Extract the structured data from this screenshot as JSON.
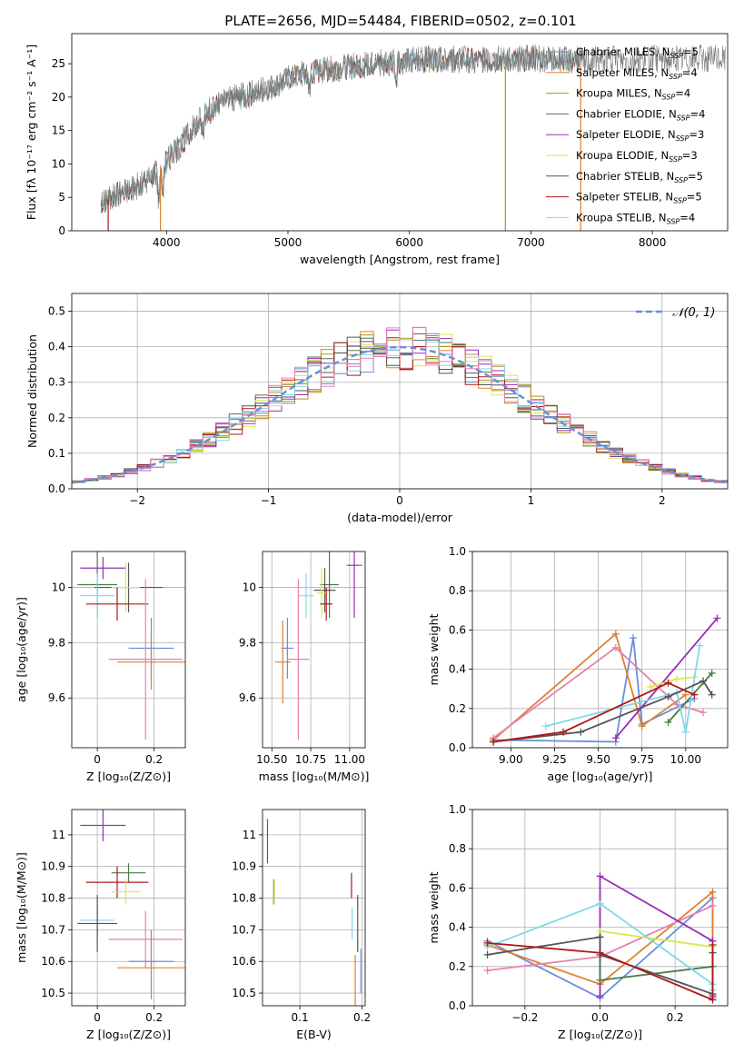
{
  "figure": {
    "title": "PLATE=2656, MJD=54484, FIBERID=0502, z=0.101"
  },
  "colors": {
    "Chabrier MILES": "#6a8fd8",
    "Salpeter MILES": "#e08030",
    "Kroupa MILES": "#b8901a",
    "Chabrier ELODIE": "#4a7a4a",
    "Salpeter ELODIE": "#9a2ab8",
    "Kroupa ELODIE": "#d8e850",
    "Chabrier STELIB": "#555555",
    "Salpeter STELIB": "#b01818",
    "Kroupa STELIB": "#80d8e8",
    "pink": "#e880b0"
  },
  "chart_data": [
    {
      "type": "line",
      "id": "spectrum",
      "title": "PLATE=2656, MJD=54484, FIBERID=0502, z=0.101",
      "xlabel": "wavelength [Angstrom, rest frame]",
      "ylabel": "Flux [fλ 10⁻¹⁷ erg cm⁻² s⁻¹ A⁻¹]",
      "xlim": [
        3220,
        8620
      ],
      "ylim": [
        0,
        29.5
      ],
      "xticks": [
        4000,
        5000,
        6000,
        7000,
        8000
      ],
      "yticks": [
        0,
        5,
        10,
        15,
        20,
        25
      ],
      "grid": false,
      "legend_placement": "top-right",
      "continuum_x": [
        3450,
        3600,
        3800,
        3950,
        4100,
        4300,
        4500,
        4800,
        5100,
        5400,
        5800,
        6200,
        6600,
        7000,
        7400,
        8000,
        8600
      ],
      "continuum_y": [
        4.0,
        5.5,
        7.0,
        9.5,
        12.5,
        17.5,
        19.5,
        21.0,
        23.5,
        24.3,
        25.2,
        25.7,
        25.5,
        25.8,
        25.5,
        25.7,
        25.8
      ],
      "features": [
        {
          "x": 3935,
          "depth": 4.5
        },
        {
          "x": 3970,
          "depth": 4.0
        },
        {
          "x": 4300,
          "depth": 3.0
        },
        {
          "x": 5175,
          "depth": 3.0
        },
        {
          "x": 5890,
          "depth": 2.5
        }
      ],
      "series": [
        {
          "name": "Chabrier MILES",
          "legend": "Chabrier MILES, N",
          "nssp": "=5"
        },
        {
          "name": "Salpeter MILES",
          "legend": "Salpeter MILES, N",
          "nssp": "=4"
        },
        {
          "name": "Kroupa MILES",
          "legend": "Kroupa MILES, N",
          "nssp": "=4"
        },
        {
          "name": "Chabrier ELODIE",
          "legend": "Chabrier ELODIE, N",
          "nssp": "=4"
        },
        {
          "name": "Salpeter ELODIE",
          "legend": "Salpeter ELODIE, N",
          "nssp": "=3"
        },
        {
          "name": "Kroupa ELODIE",
          "legend": "Kroupa ELODIE, N",
          "nssp": "=3"
        },
        {
          "name": "Chabrier STELIB",
          "legend": "Chabrier STELIB, N",
          "nssp": "=5"
        },
        {
          "name": "Salpeter STELIB",
          "legend": "Salpeter STELIB, N",
          "nssp": "=5"
        },
        {
          "name": "Kroupa STELIB",
          "legend": "Kroupa STELIB, N",
          "nssp": "=4"
        }
      ],
      "nssp_subscript": "SSP"
    },
    {
      "type": "bar",
      "id": "residuals",
      "xlabel": "(data-model)/error",
      "ylabel": "Normed distribution",
      "xlim": [
        -2.5,
        2.5
      ],
      "ylim": [
        0,
        0.55
      ],
      "xticks": [
        -2,
        -1,
        0,
        1,
        2
      ],
      "xticklabels": [
        "−2",
        "−1",
        "0",
        "1",
        "2"
      ],
      "yticks": [
        0.0,
        0.1,
        0.2,
        0.3,
        0.4,
        0.5
      ],
      "yticklabels": [
        "0.0",
        "0.1",
        "0.2",
        "0.3",
        "0.4",
        "0.5"
      ],
      "grid": true,
      "bin_width": 0.1,
      "legend_placement": "top-right",
      "gaussian_label": "𝒩(0, 1)",
      "gaussian_mean": 0,
      "gaussian_sigma": 1
    },
    {
      "type": "scatter",
      "id": "age-vs-Z",
      "xlabel": "Z [log₁₀(Z/Z⊙)]",
      "ylabel": "age  [log₁₀(age/yr)]",
      "xlim": [
        -0.09,
        0.31
      ],
      "ylim": [
        9.42,
        10.13
      ],
      "xticks": [
        0.0,
        0.2
      ],
      "yticks": [
        9.6,
        9.8,
        10.0
      ],
      "grid": true,
      "points": [
        {
          "x": 0.02,
          "y": 10.07,
          "xerr": 0.08,
          "yerr": 0.04,
          "color": "Salpeter ELODIE"
        },
        {
          "x": 0.0,
          "y": 10.01,
          "xerr": 0.07,
          "yerr": 0.12,
          "color": "Chabrier ELODIE"
        },
        {
          "x": 0.11,
          "y": 10.0,
          "xerr": 0.12,
          "yerr": 0.09,
          "color": "Chabrier STELIB"
        },
        {
          "x": 0.1,
          "y": 10.0,
          "xerr": 0.05,
          "yerr": 0.09,
          "color": "Kroupa ELODIE"
        },
        {
          "x": 0.0,
          "y": 9.97,
          "xerr": 0.06,
          "yerr": 0.08,
          "color": "Kroupa STELIB"
        },
        {
          "x": 0.07,
          "y": 9.94,
          "xerr": 0.11,
          "yerr": 0.06,
          "color": "Salpeter STELIB"
        },
        {
          "x": 0.19,
          "y": 9.78,
          "xerr": 0.08,
          "yerr": 0.11,
          "color": "Chabrier MILES"
        },
        {
          "x": 0.19,
          "y": 9.73,
          "xerr": 0.12,
          "yerr": 0.1,
          "color": "Salpeter MILES"
        },
        {
          "x": 0.17,
          "y": 9.74,
          "xerr": 0.13,
          "yerr": 0.29,
          "color": "pink"
        }
      ]
    },
    {
      "type": "scatter",
      "id": "age-vs-mass",
      "xlabel": "mass [log₁₀(M/M⊙)]",
      "ylabel": "",
      "xlim": [
        10.44,
        11.1
      ],
      "ylim": [
        9.42,
        10.13
      ],
      "xticks": [
        10.5,
        10.75,
        11.0
      ],
      "xticklabels": [
        "10.50",
        "10.75",
        "11.00"
      ],
      "yticks": [
        9.6,
        9.8,
        10.0
      ],
      "grid": true,
      "points": [
        {
          "x": 11.03,
          "y": 10.08,
          "xerr": 0.05,
          "yerr": 0.19,
          "color": "Salpeter ELODIE"
        },
        {
          "x": 10.87,
          "y": 10.01,
          "xerr": 0.06,
          "yerr": 0.12,
          "color": "Chabrier ELODIE"
        },
        {
          "x": 10.84,
          "y": 9.99,
          "xerr": 0.07,
          "yerr": 0.08,
          "color": "Chabrier STELIB"
        },
        {
          "x": 10.82,
          "y": 9.98,
          "xerr": 0.03,
          "yerr": 0.09,
          "color": "Kroupa ELODIE"
        },
        {
          "x": 10.72,
          "y": 9.97,
          "xerr": 0.05,
          "yerr": 0.08,
          "color": "Kroupa STELIB"
        },
        {
          "x": 10.85,
          "y": 9.94,
          "xerr": 0.04,
          "yerr": 0.06,
          "color": "Salpeter STELIB"
        },
        {
          "x": 10.6,
          "y": 9.78,
          "xerr": 0.04,
          "yerr": 0.11,
          "color": "Chabrier MILES"
        },
        {
          "x": 10.57,
          "y": 9.73,
          "xerr": 0.05,
          "yerr": 0.15,
          "color": "Salpeter MILES"
        },
        {
          "x": 10.67,
          "y": 9.74,
          "xerr": 0.07,
          "yerr": 0.29,
          "color": "pink"
        }
      ]
    },
    {
      "type": "line",
      "id": "weight-vs-age",
      "xlabel": "age  [log₁₀(age/yr)]",
      "ylabel": "mass weight",
      "xlim": [
        8.78,
        10.24
      ],
      "ylim": [
        0.0,
        1.0
      ],
      "xticks": [
        9.0,
        9.25,
        9.5,
        9.75,
        10.0
      ],
      "xticklabels": [
        "9.00",
        "9.25",
        "9.50",
        "9.75",
        "10.00"
      ],
      "yticks": [
        0.0,
        0.2,
        0.4,
        0.6,
        0.8,
        1.0
      ],
      "yticklabels": [
        "0.0",
        "0.2",
        "0.4",
        "0.6",
        "0.8",
        "1.0"
      ],
      "grid": true,
      "series": [
        {
          "color": "Chabrier MILES",
          "x": [
            8.9,
            9.6,
            9.7,
            9.75,
            10.05
          ],
          "y": [
            0.04,
            0.03,
            0.56,
            0.12,
            0.25
          ]
        },
        {
          "color": "Salpeter MILES",
          "x": [
            8.9,
            9.6,
            9.75,
            10.0
          ],
          "y": [
            0.04,
            0.58,
            0.11,
            0.27
          ]
        },
        {
          "color": "pink",
          "x": [
            8.9,
            9.6,
            9.95,
            10.1
          ],
          "y": [
            0.05,
            0.51,
            0.22,
            0.18
          ]
        },
        {
          "color": "Salpeter ELODIE",
          "x": [
            9.6,
            10.18
          ],
          "y": [
            0.05,
            0.66
          ]
        },
        {
          "color": "Chabrier ELODIE",
          "x": [
            9.9,
            10.15
          ],
          "y": [
            0.13,
            0.38
          ]
        },
        {
          "color": "Kroupa ELODIE",
          "x": [
            9.8,
            9.95,
            10.05
          ],
          "y": [
            0.31,
            0.35,
            0.36
          ]
        },
        {
          "color": "Kroupa STELIB",
          "x": [
            9.2,
            9.95,
            10.0,
            10.08
          ],
          "y": [
            0.11,
            0.28,
            0.08,
            0.52
          ]
        },
        {
          "color": "Chabrier STELIB",
          "x": [
            8.9,
            9.4,
            9.9,
            10.1,
            10.15
          ],
          "y": [
            0.03,
            0.08,
            0.26,
            0.34,
            0.27
          ]
        },
        {
          "color": "Salpeter STELIB",
          "x": [
            8.9,
            9.3,
            9.9,
            10.05
          ],
          "y": [
            0.03,
            0.08,
            0.33,
            0.27
          ]
        }
      ]
    },
    {
      "type": "scatter",
      "id": "mass-vs-Z",
      "xlabel": "Z [log₁₀(Z/Z⊙)]",
      "ylabel": "mass [log₁₀(M/M⊙)]",
      "xlim": [
        -0.09,
        0.31
      ],
      "ylim": [
        10.46,
        11.08
      ],
      "xticks": [
        0.0,
        0.2
      ],
      "yticks": [
        10.5,
        10.6,
        10.7,
        10.8,
        10.9,
        11.0
      ],
      "grid": true,
      "points": [
        {
          "x": 0.02,
          "y": 11.03,
          "xerr": 0.08,
          "yerr": 0.05,
          "color": "Salpeter ELODIE"
        },
        {
          "x": 0.11,
          "y": 10.88,
          "xerr": 0.06,
          "yerr": 0.03,
          "color": "Chabrier ELODIE"
        },
        {
          "x": 0.07,
          "y": 10.85,
          "xerr": 0.11,
          "yerr": 0.05,
          "color": "Salpeter STELIB"
        },
        {
          "x": 0.1,
          "y": 10.82,
          "xerr": 0.05,
          "yerr": 0.04,
          "color": "Kroupa ELODIE"
        },
        {
          "x": 0.0,
          "y": 10.73,
          "xerr": 0.06,
          "yerr": 0.05,
          "color": "Kroupa STELIB"
        },
        {
          "x": 0.0,
          "y": 10.72,
          "xerr": 0.07,
          "yerr": 0.09,
          "color": "Chabrier STELIB"
        },
        {
          "x": 0.17,
          "y": 10.67,
          "xerr": 0.13,
          "yerr": 0.09,
          "color": "pink"
        },
        {
          "x": 0.19,
          "y": 10.6,
          "xerr": 0.08,
          "yerr": 0.1,
          "color": "Chabrier MILES"
        },
        {
          "x": 0.19,
          "y": 10.58,
          "xerr": 0.12,
          "yerr": 0.1,
          "color": "Salpeter MILES"
        }
      ]
    },
    {
      "type": "scatter",
      "id": "mass-vs-ebv",
      "xlabel": "E(B-V)",
      "ylabel": "",
      "xlim": [
        0.04,
        0.205
      ],
      "ylim": [
        10.46,
        11.08
      ],
      "xticks": [
        0.1,
        0.2
      ],
      "yticks": [
        10.5,
        10.6,
        10.7,
        10.8,
        10.9,
        11.0
      ],
      "grid": true,
      "points": [
        {
          "x": 0.048,
          "y": 10.98,
          "xerr": 0,
          "yerr": 0.07,
          "color": "Salpeter ELODIE"
        },
        {
          "x": 0.058,
          "y": 10.82,
          "xerr": 0,
          "yerr": 0.04,
          "color": "Chabrier ELODIE"
        },
        {
          "x": 0.059,
          "y": 10.82,
          "xerr": 0,
          "yerr": 0.04,
          "color": "Kroupa ELODIE"
        },
        {
          "x": 0.183,
          "y": 10.84,
          "xerr": 0,
          "yerr": 0.04,
          "color": "Salpeter STELIB"
        },
        {
          "x": 0.184,
          "y": 10.72,
          "xerr": 0,
          "yerr": 0.05,
          "color": "Kroupa STELIB"
        },
        {
          "x": 0.193,
          "y": 10.72,
          "xerr": 0,
          "yerr": 0.09,
          "color": "Chabrier STELIB"
        },
        {
          "x": 0.198,
          "y": 10.57,
          "xerr": 0,
          "yerr": 0.07,
          "color": "Chabrier MILES"
        },
        {
          "x": 0.189,
          "y": 10.54,
          "xerr": 0,
          "yerr": 0.08,
          "color": "Salpeter MILES"
        }
      ]
    },
    {
      "type": "line",
      "id": "weight-vs-Z",
      "xlabel": "Z [log₁₀(Z/Z⊙)]",
      "ylabel": "mass weight",
      "xlim": [
        -0.34,
        0.34
      ],
      "ylim": [
        0.0,
        1.0
      ],
      "xticks": [
        -0.2,
        0.0,
        0.2
      ],
      "xticklabels": [
        "−0.2",
        "0.0",
        "0.2"
      ],
      "yticks": [
        0.0,
        0.2,
        0.4,
        0.6,
        0.8,
        1.0
      ],
      "yticklabels": [
        "0.0",
        "0.2",
        "0.4",
        "0.6",
        "0.8",
        "1.0"
      ],
      "grid": true,
      "series": [
        {
          "color": "Chabrier MILES",
          "x": [
            -0.3,
            0.0,
            0.3,
            0.3
          ],
          "y": [
            0.33,
            0.04,
            0.55,
            0.04
          ]
        },
        {
          "color": "Salpeter MILES",
          "x": [
            -0.3,
            0.0,
            0.3,
            0.3
          ],
          "y": [
            0.31,
            0.11,
            0.58,
            0.05
          ]
        },
        {
          "color": "pink",
          "x": [
            -0.3,
            0.0,
            0.3
          ],
          "y": [
            0.18,
            0.25,
            0.51
          ]
        },
        {
          "color": "Salpeter ELODIE",
          "x": [
            0.0,
            0.0,
            0.3,
            0.3
          ],
          "y": [
            0.05,
            0.66,
            0.33,
            0.05
          ]
        },
        {
          "color": "Chabrier ELODIE",
          "x": [
            0.0,
            0.0,
            0.3
          ],
          "y": [
            0.35,
            0.13,
            0.2
          ]
        },
        {
          "color": "Kroupa ELODIE",
          "x": [
            0.0,
            0.3
          ],
          "y": [
            0.38,
            0.3
          ]
        },
        {
          "color": "Kroupa STELIB",
          "x": [
            -0.3,
            0.0,
            0.3,
            0.3
          ],
          "y": [
            0.3,
            0.52,
            0.11,
            0.08
          ]
        },
        {
          "color": "Chabrier STELIB",
          "x": [
            -0.3,
            0.0,
            0.0,
            0.3,
            0.3
          ],
          "y": [
            0.26,
            0.35,
            0.26,
            0.06,
            0.27
          ]
        },
        {
          "color": "Salpeter STELIB",
          "x": [
            -0.3,
            0.0,
            0.3,
            0.3
          ],
          "y": [
            0.32,
            0.27,
            0.03,
            0.31
          ]
        }
      ]
    }
  ]
}
